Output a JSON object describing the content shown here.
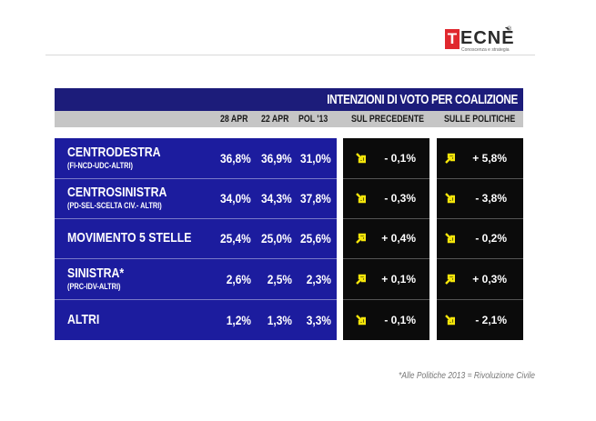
{
  "logo": {
    "first_letter": "T",
    "rest": "ECNÈ",
    "registered": "®",
    "tagline": "Conoscenza e strategia"
  },
  "table": {
    "title": "INTENZIONI DI VOTO PER COALIZIONE",
    "headers": [
      "28 APR",
      "22 APR",
      "POL '13",
      "SUL PRECEDENTE",
      "SULLE POLITICHE"
    ],
    "rows": [
      {
        "name": "CENTRODESTRA",
        "sub": "(FI-NCD-UDC-ALTRI)",
        "v28": "36,8%",
        "v22": "36,9%",
        "pol": "31,0%",
        "d_prec": "- 0,1%",
        "d_prec_dir": "down",
        "d_pol": "+ 5,8%",
        "d_pol_dir": "up"
      },
      {
        "name": "CENTROSINISTRA",
        "sub": "(PD-SEL-SCELTA CIV.- ALTRI)",
        "v28": "34,0%",
        "v22": "34,3%",
        "pol": "37,8%",
        "d_prec": "- 0,3%",
        "d_prec_dir": "down",
        "d_pol": "- 3,8%",
        "d_pol_dir": "down"
      },
      {
        "name": "MOVIMENTO 5 STELLE",
        "sub": "",
        "v28": "25,4%",
        "v22": "25,0%",
        "pol": "25,6%",
        "d_prec": "+ 0,4%",
        "d_prec_dir": "up",
        "d_pol": "- 0,2%",
        "d_pol_dir": "down"
      },
      {
        "name": "SINISTRA*",
        "sub": "(PRC-IDV-ALTRI)",
        "v28": "2,6%",
        "v22": "2,5%",
        "pol": "2,3%",
        "d_prec": "+ 0,1%",
        "d_prec_dir": "up",
        "d_pol": "+ 0,3%",
        "d_pol_dir": "up"
      },
      {
        "name": "ALTRI",
        "sub": "",
        "v28": "1,2%",
        "v22": "1,3%",
        "pol": "3,3%",
        "d_prec": "- 0,1%",
        "d_prec_dir": "down",
        "d_pol": "- 2,1%",
        "d_pol_dir": "down"
      }
    ]
  },
  "footnote": "*Alle Politiche 2013 = Rivoluzione Civile",
  "colors": {
    "blue": "#1c1c9e",
    "title_blue": "#1c1c7a",
    "header_gray": "#c6c6c6",
    "arrow_yellow": "#f5e60a",
    "logo_red": "#e0282e"
  }
}
